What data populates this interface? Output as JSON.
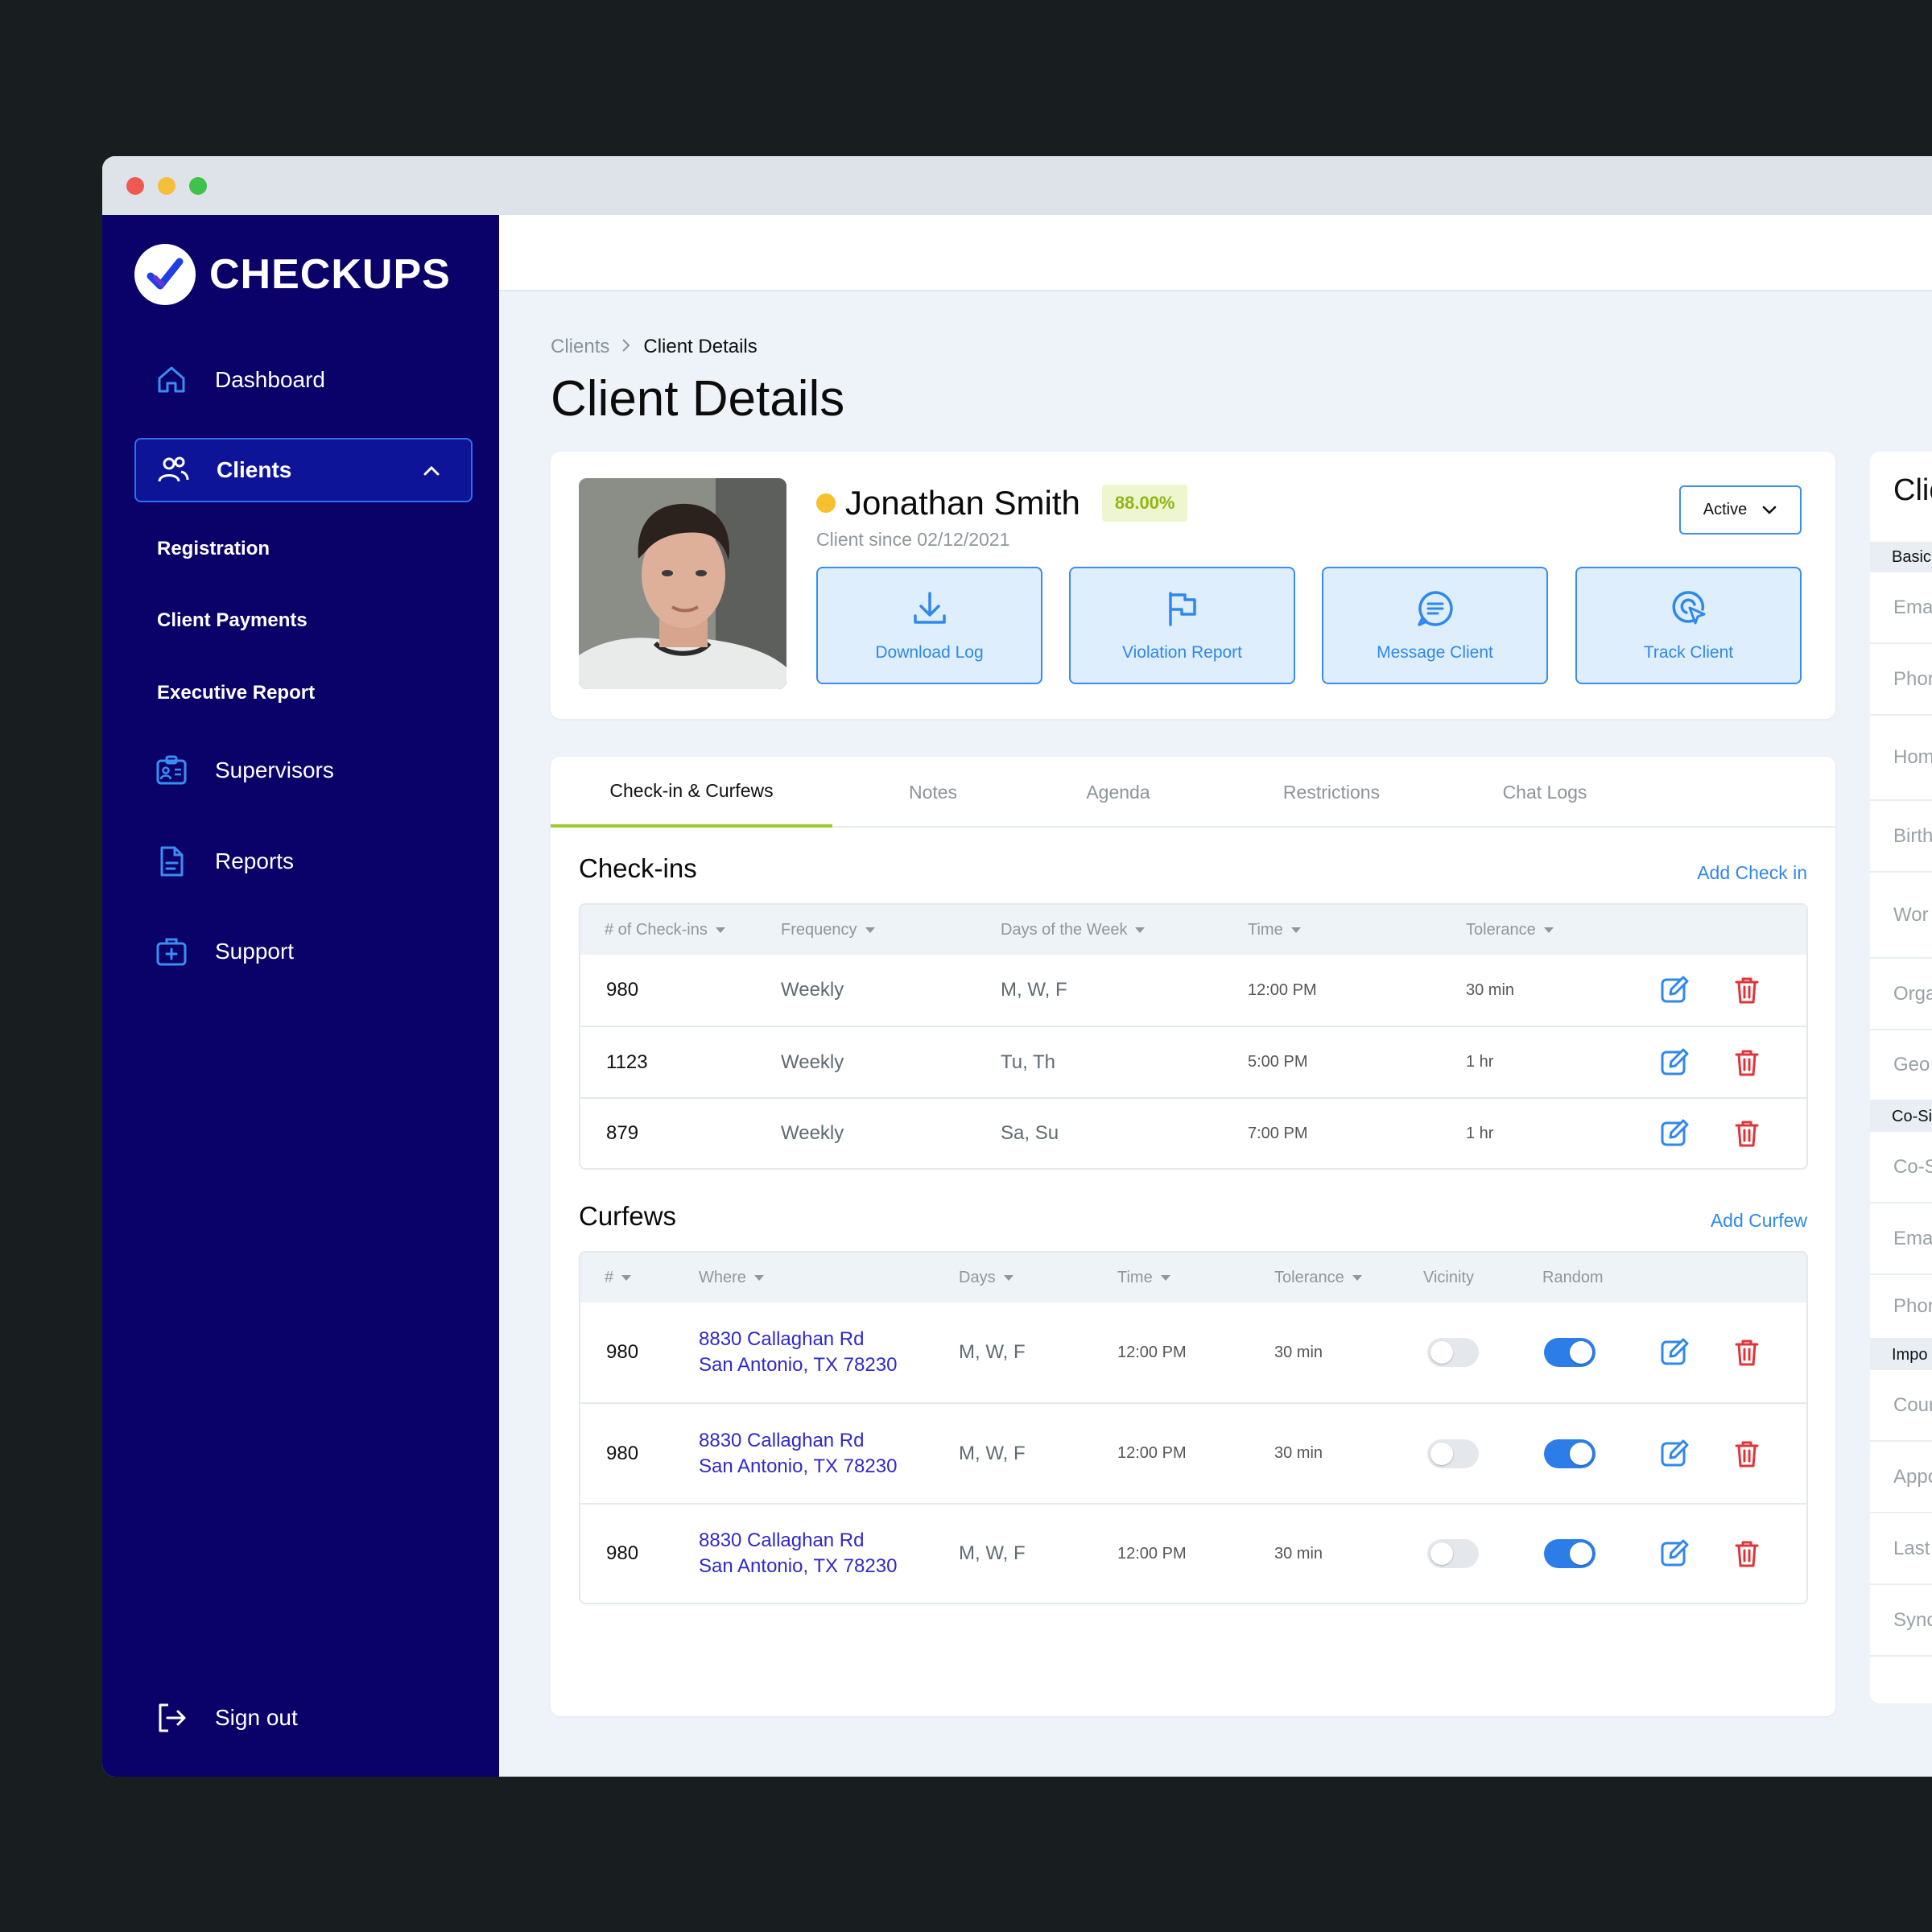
{
  "brand": {
    "name": "CHECKUPS"
  },
  "sidebar": {
    "items": [
      {
        "label": "Dashboard",
        "icon": "home-icon"
      },
      {
        "label": "Clients",
        "icon": "users-icon"
      },
      {
        "label": "Supervisors",
        "icon": "id-card-icon"
      },
      {
        "label": "Reports",
        "icon": "document-icon"
      },
      {
        "label": "Support",
        "icon": "medkit-icon"
      }
    ],
    "sub_items": [
      "Registration",
      "Client Payments",
      "Executive Report"
    ],
    "signout": "Sign out"
  },
  "breadcrumb": {
    "parent": "Clients",
    "current": "Client Details"
  },
  "page_title": "Client Details",
  "client": {
    "name": "Jonathan Smith",
    "score": "88.00%",
    "since": "Client since 02/12/2021",
    "status": "Active",
    "status_color": "#f6c12c"
  },
  "actions": [
    "Download Log",
    "Violation Report",
    "Message Client",
    "Track Client"
  ],
  "tabs": [
    "Check-in & Curfews",
    "Notes",
    "Agenda",
    "Restrictions",
    "Chat Logs"
  ],
  "checkins": {
    "title": "Check-ins",
    "add_label": "Add Check in",
    "columns": [
      "# of Check-ins",
      "Frequency",
      "Days of the Week",
      "Time",
      "Tolerance"
    ],
    "rows": [
      [
        "980",
        "Weekly",
        "M, W, F",
        "12:00 PM",
        "30 min"
      ],
      [
        "1123",
        "Weekly",
        "Tu, Th",
        "5:00 PM",
        "1 hr"
      ],
      [
        "879",
        "Weekly",
        "Sa, Su",
        "7:00 PM",
        "1 hr"
      ]
    ]
  },
  "curfews": {
    "title": "Curfews",
    "add_label": "Add Curfew",
    "columns": [
      "#",
      "Where",
      "Days",
      "Time",
      "Tolerance",
      "Vicinity",
      "Random"
    ],
    "rows": [
      {
        "num": "980",
        "addr1": "8830 Callaghan Rd",
        "addr2": "San Antonio, TX 78230",
        "days": "M, W, F",
        "time": "12:00 PM",
        "tol": "30 min",
        "vicinity": false,
        "random": true
      },
      {
        "num": "980",
        "addr1": "8830 Callaghan Rd",
        "addr2": "San Antonio, TX 78230",
        "days": "M, W, F",
        "time": "12:00 PM",
        "tol": "30 min",
        "vicinity": false,
        "random": true
      },
      {
        "num": "980",
        "addr1": "8830 Callaghan Rd",
        "addr2": "San Antonio, TX 78230",
        "days": "M, W, F",
        "time": "12:00 PM",
        "tol": "30 min",
        "vicinity": false,
        "random": true
      }
    ]
  },
  "side_panel": {
    "title": "Clie",
    "sections": [
      "Basic",
      "Co-Si",
      "Impo"
    ],
    "fields": [
      "Ema",
      "Phor",
      "Hom",
      "Birth",
      "Wor",
      "Orga",
      "Geo",
      "Co-S",
      "Ema",
      "Phor",
      "Cour",
      "Appo",
      "Last",
      "Sync"
    ]
  },
  "colors": {
    "sidebar_bg": "#0a0268",
    "accent": "#2f88ea",
    "tab_underline": "#a1c82d",
    "danger": "#e0343a"
  }
}
